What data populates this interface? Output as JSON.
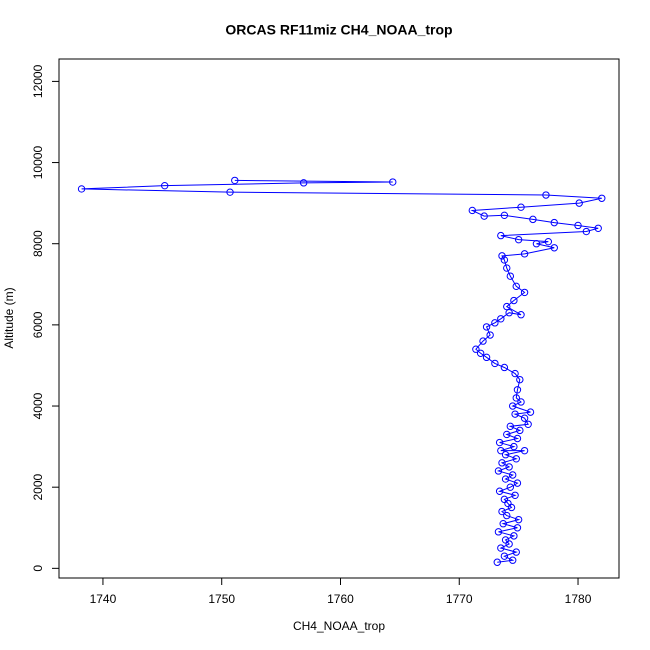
{
  "chart_data": {
    "type": "scatter",
    "title": "ORCAS RF11miz CH4_NOAA_trop",
    "x_label": "CH4_NOAA_trop",
    "y_label": "Altitude (m)",
    "color": "#0000ff",
    "connect_points": true,
    "xlim": [
      1736.3,
      1783.45
    ],
    "xticks": [
      1740,
      1750,
      1760,
      1770,
      1780
    ],
    "ylim": [
      -238,
      12552
    ],
    "yticks": [
      0,
      2000,
      4000,
      6000,
      8000,
      10000,
      12000
    ],
    "x": [
      1773.2,
      1774.5,
      1773.8,
      1774.8,
      1773.5,
      1774.2,
      1773.9,
      1774.6,
      1773.3,
      1774.9,
      1773.7,
      1775.0,
      1774.0,
      1773.6,
      1774.4,
      1774.1,
      1773.8,
      1774.7,
      1773.4,
      1774.3,
      1774.9,
      1773.9,
      1774.5,
      1773.3,
      1774.2,
      1773.6,
      1774.8,
      1773.9,
      1775.5,
      1773.5,
      1774.6,
      1773.4,
      1774.9,
      1774.0,
      1775.1,
      1774.3,
      1775.8,
      1775.5,
      1774.7,
      1776.0,
      1774.5,
      1775.2,
      1774.8,
      1774.9,
      1775.1,
      1774.7,
      1773.8,
      1773.0,
      1772.3,
      1771.8,
      1771.4,
      1772.0,
      1772.6,
      1772.3,
      1773.0,
      1773.5,
      1774.2,
      1775.2,
      1774.0,
      1774.6,
      1775.5,
      1774.8,
      1774.3,
      1774.0,
      1773.8,
      1773.6,
      1775.5,
      1778.0,
      1776.5,
      1777.5,
      1775.0,
      1773.5,
      1780.7,
      1781.7,
      1780.0,
      1778.0,
      1776.2,
      1773.8,
      1772.1,
      1771.1,
      1775.2,
      1780.1,
      1782.0,
      1777.3,
      1750.7,
      1738.2,
      1745.2,
      1756.9,
      1764.4,
      1751.1
    ],
    "values": [
      150,
      200,
      300,
      400,
      500,
      600,
      700,
      800,
      900,
      1000,
      1100,
      1200,
      1300,
      1400,
      1500,
      1600,
      1700,
      1800,
      1900,
      2000,
      2100,
      2200,
      2300,
      2400,
      2500,
      2600,
      2700,
      2800,
      2900,
      2900,
      3000,
      3100,
      3200,
      3300,
      3400,
      3500,
      3550,
      3700,
      3800,
      3850,
      4000,
      4100,
      4200,
      4400,
      4650,
      4800,
      4950,
      5050,
      5200,
      5300,
      5400,
      5600,
      5750,
      5950,
      6050,
      6150,
      6300,
      6250,
      6450,
      6600,
      6800,
      6950,
      7200,
      7400,
      7600,
      7700,
      7750,
      7900,
      8000,
      8050,
      8100,
      8200,
      8300,
      8380,
      8450,
      8520,
      8600,
      8700,
      8680,
      8820,
      8900,
      9000,
      9120,
      9200,
      9270,
      9350,
      9430,
      9500,
      9520,
      9560
    ]
  }
}
